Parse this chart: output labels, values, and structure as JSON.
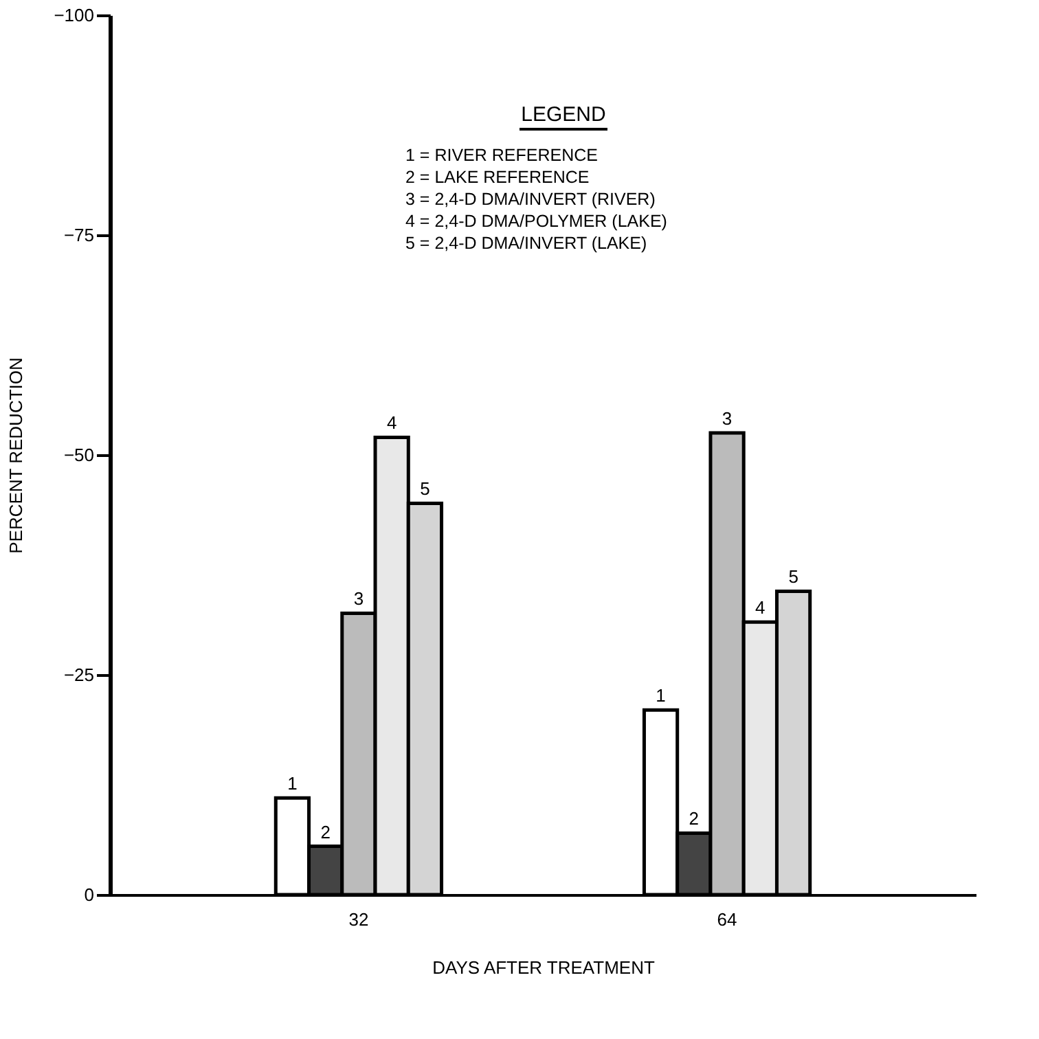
{
  "chart_data": {
    "type": "bar",
    "xlabel": "DAYS AFTER TREATMENT",
    "ylabel": "PERCENT REDUCTION",
    "categories": [
      "32",
      "64"
    ],
    "series": [
      {
        "name": "1",
        "color": "#ffffff",
        "values": [
          -11,
          -21
        ]
      },
      {
        "name": "2",
        "color": "#444444",
        "values": [
          -5.5,
          -7
        ]
      },
      {
        "name": "3",
        "color": "#bbbbbb",
        "values": [
          -32,
          -52.5
        ]
      },
      {
        "name": "4",
        "color": "#e8e8e8",
        "values": [
          -52,
          -31
        ]
      },
      {
        "name": "5",
        "color": "#d4d4d4",
        "values": [
          -44.5,
          -34.5
        ]
      }
    ],
    "ylim": [
      0,
      -100
    ],
    "yticks": [
      0,
      -25,
      -50,
      -75,
      -100
    ],
    "grid": false,
    "legend": false,
    "annotations": [
      "LEGEND",
      "1 = RIVER REFERENCE",
      "2 = LAKE REFERENCE",
      "3 = 2,4-D DMA/INVERT (RIVER)",
      "4 = 2,4-D DMA/POLYMER (LAKE)",
      "5 = 2,4-D DMA/INVERT (LAKE)"
    ]
  }
}
